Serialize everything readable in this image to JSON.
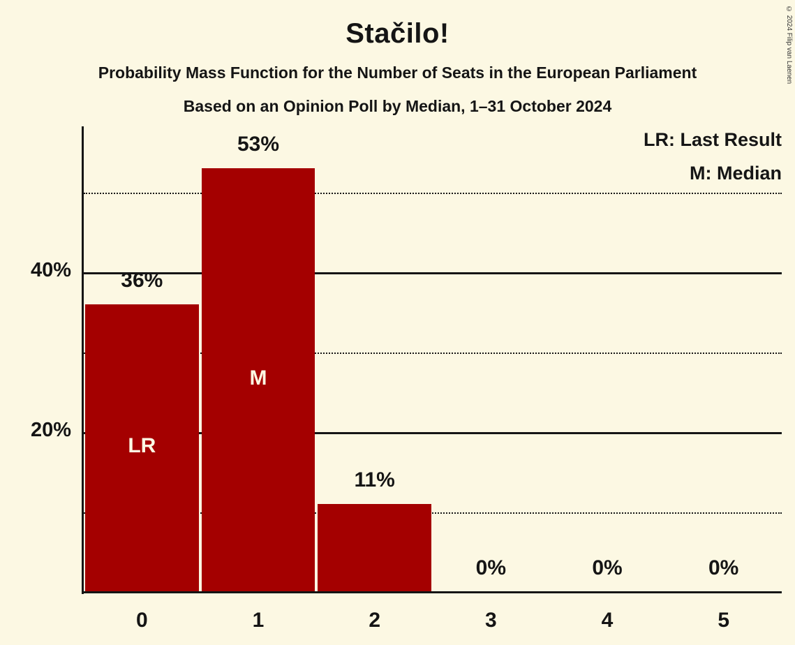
{
  "title": "Stačilo!",
  "subtitle1": "Probability Mass Function for the Number of Seats in the European Parliament",
  "subtitle2": "Based on an Opinion Poll by Median, 1–31 October 2024",
  "copyright": "© 2024 Filip van Laenen",
  "legend": {
    "lr": "LR: Last Result",
    "m": "M: Median"
  },
  "colors": {
    "background": "#FCF8E3",
    "bar": "#A40000",
    "text": "#151515",
    "bar_label": "#FCF8E3"
  },
  "chart_data": {
    "type": "bar",
    "title": "Stačilo!",
    "categories": [
      "0",
      "1",
      "2",
      "3",
      "4",
      "5"
    ],
    "values": [
      36,
      53,
      11,
      0,
      0,
      0
    ],
    "value_labels": [
      "36%",
      "53%",
      "11%",
      "0%",
      "0%",
      "0%"
    ],
    "inner_labels": [
      "LR",
      "M",
      "",
      "",
      "",
      ""
    ],
    "xlabel": "",
    "ylabel": "",
    "ylim": [
      0,
      58
    ],
    "grid": true,
    "legend_position": "top-right",
    "gridlines": [
      {
        "value": 10,
        "style": "dotted",
        "label": ""
      },
      {
        "value": 20,
        "style": "solid",
        "label": "20%"
      },
      {
        "value": 30,
        "style": "dotted",
        "label": ""
      },
      {
        "value": 40,
        "style": "solid",
        "label": "40%"
      },
      {
        "value": 50,
        "style": "dotted",
        "label": ""
      }
    ]
  }
}
